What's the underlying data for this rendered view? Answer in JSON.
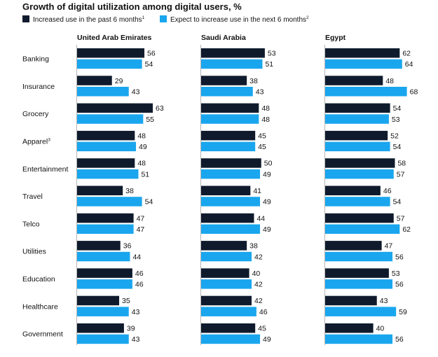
{
  "chart_data": {
    "type": "bar",
    "orientation": "horizontal",
    "title": "Growth of digital utilization among digital users, %",
    "legend": [
      {
        "label": "Increased use in the past 6 months",
        "marker": "1",
        "color": "#0f1b2d"
      },
      {
        "label": "Expect to increase use in the next 6 months",
        "marker": "2",
        "color": "#1aa6ee"
      }
    ],
    "legend_position": "top-left",
    "categories": [
      {
        "label": "Banking",
        "marker": ""
      },
      {
        "label": "Insurance",
        "marker": ""
      },
      {
        "label": "Grocery",
        "marker": ""
      },
      {
        "label": "Apparel",
        "marker": "3"
      },
      {
        "label": "Entertainment",
        "marker": ""
      },
      {
        "label": "Travel",
        "marker": ""
      },
      {
        "label": "Telco",
        "marker": ""
      },
      {
        "label": "Utilities",
        "marker": ""
      },
      {
        "label": "Education",
        "marker": ""
      },
      {
        "label": "Healthcare",
        "marker": ""
      },
      {
        "label": "Government",
        "marker": ""
      }
    ],
    "panels": [
      {
        "title": "United Arab Emirates",
        "series": [
          {
            "name": "Increased use in the past 6 months",
            "values": [
              56,
              29,
              63,
              48,
              48,
              38,
              47,
              36,
              46,
              35,
              39
            ]
          },
          {
            "name": "Expect to increase use in the next 6 months",
            "values": [
              54,
              43,
              55,
              49,
              51,
              54,
              47,
              44,
              46,
              43,
              43
            ]
          }
        ]
      },
      {
        "title": "Saudi Arabia",
        "series": [
          {
            "name": "Increased use in the past 6 months",
            "values": [
              53,
              38,
              48,
              45,
              50,
              41,
              44,
              38,
              40,
              42,
              45
            ]
          },
          {
            "name": "Expect to increase use in the next 6 months",
            "values": [
              51,
              43,
              48,
              45,
              49,
              49,
              49,
              42,
              42,
              46,
              49
            ]
          }
        ]
      },
      {
        "title": "Egypt",
        "series": [
          {
            "name": "Increased use in the past 6 months",
            "values": [
              62,
              48,
              54,
              52,
              58,
              46,
              57,
              47,
              53,
              43,
              40
            ]
          },
          {
            "name": "Expect to increase use in the next 6 months",
            "values": [
              64,
              68,
              53,
              54,
              57,
              54,
              62,
              56,
              56,
              59,
              56
            ]
          }
        ]
      }
    ],
    "grid": false
  }
}
